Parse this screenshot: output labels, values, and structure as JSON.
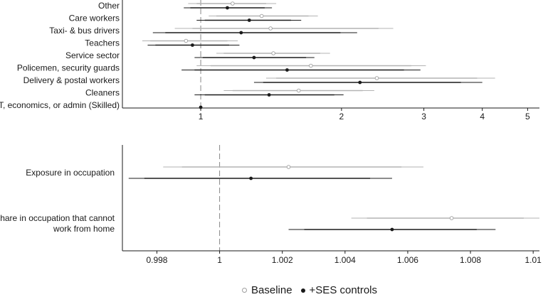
{
  "colors": {
    "baseline": "#b3b3b3",
    "ses": "#1a1a1a",
    "axis": "#1a1a1a",
    "refline": "#888888"
  },
  "legend": {
    "baseline": "Baseline",
    "ses": "+SES controls"
  },
  "chart_data": [
    {
      "type": "forest",
      "xscale": "log",
      "xlim": [
        0.68,
        5.3
      ],
      "xticks": [
        1,
        2,
        3,
        4,
        5
      ],
      "xticklabels": [
        "1",
        "2",
        "3",
        "4",
        "5"
      ],
      "reference": 1,
      "categories": [
        "Other",
        "Care workers",
        "Taxi- & bus drivers",
        "Teachers",
        "Service sector",
        "Policemen, security guards",
        "Delivery & postal workers",
        "Cleaners",
        "IT, economics, or admin (Skilled)"
      ],
      "series": [
        {
          "name": "Baseline",
          "estimates": [
            1.17,
            1.35,
            1.41,
            0.93,
            1.43,
            1.72,
            2.38,
            1.62,
            null
          ],
          "ci95": [
            [
              0.94,
              1.45
            ],
            [
              1.04,
              1.78
            ],
            [
              0.88,
              2.58
            ],
            [
              0.75,
              1.2
            ],
            [
              1.08,
              1.89
            ],
            [
              0.98,
              3.03
            ],
            [
              1.38,
              4.26
            ],
            [
              1.12,
              2.35
            ],
            null
          ],
          "ci90": [
            [
              0.98,
              1.38
            ],
            [
              1.08,
              1.7
            ],
            [
              0.96,
              2.4
            ],
            [
              0.78,
              1.14
            ],
            [
              1.12,
              1.8
            ],
            [
              1.05,
              2.82
            ],
            [
              1.45,
              3.9
            ],
            [
              1.17,
              2.22
            ],
            null
          ]
        },
        {
          "name": "+SES controls",
          "estimates": [
            1.14,
            1.27,
            1.22,
            0.96,
            1.3,
            1.53,
            2.19,
            1.4,
            1
          ],
          "ci95": [
            [
              0.92,
              1.42
            ],
            [
              0.98,
              1.64
            ],
            [
              0.79,
              2.16
            ],
            [
              0.77,
              1.21
            ],
            [
              0.97,
              1.75
            ],
            [
              0.91,
              2.95
            ],
            [
              1.3,
              4.0
            ],
            [
              0.97,
              2.02
            ],
            null
          ],
          "ci90": [
            [
              0.95,
              1.37
            ],
            [
              1.02,
              1.56
            ],
            [
              0.84,
              1.99
            ],
            [
              0.8,
              1.15
            ],
            [
              1.01,
              1.68
            ],
            [
              0.97,
              2.72
            ],
            [
              1.36,
              3.6
            ],
            [
              1.02,
              1.93
            ],
            null
          ]
        }
      ]
    },
    {
      "type": "forest",
      "xscale": "linear",
      "xlim": [
        0.9969,
        1.0102
      ],
      "xticks": [
        0.998,
        1,
        1.002,
        1.004,
        1.006,
        1.008,
        1.01
      ],
      "xticklabels": [
        "0.998",
        "1",
        "1.002",
        "1.004",
        "1.006",
        "1.008",
        "1.01"
      ],
      "reference": 1,
      "categories": [
        "Exposure in occupation",
        "Share in occupation that cannot work from home"
      ],
      "series": [
        {
          "name": "Baseline",
          "estimates": [
            1.0022,
            1.0074
          ],
          "ci95": [
            [
              0.9982,
              1.0065
            ],
            [
              1.0042,
              1.0102
            ]
          ],
          "ci90": [
            [
              0.9988,
              1.0058
            ],
            [
              1.0047,
              1.0097
            ]
          ]
        },
        {
          "name": "+SES controls",
          "estimates": [
            1.001,
            1.0055
          ],
          "ci95": [
            [
              0.9971,
              1.0055
            ],
            [
              1.0022,
              1.0088
            ]
          ],
          "ci90": [
            [
              0.9976,
              1.0048
            ],
            [
              1.0027,
              1.0082
            ]
          ]
        }
      ]
    }
  ]
}
